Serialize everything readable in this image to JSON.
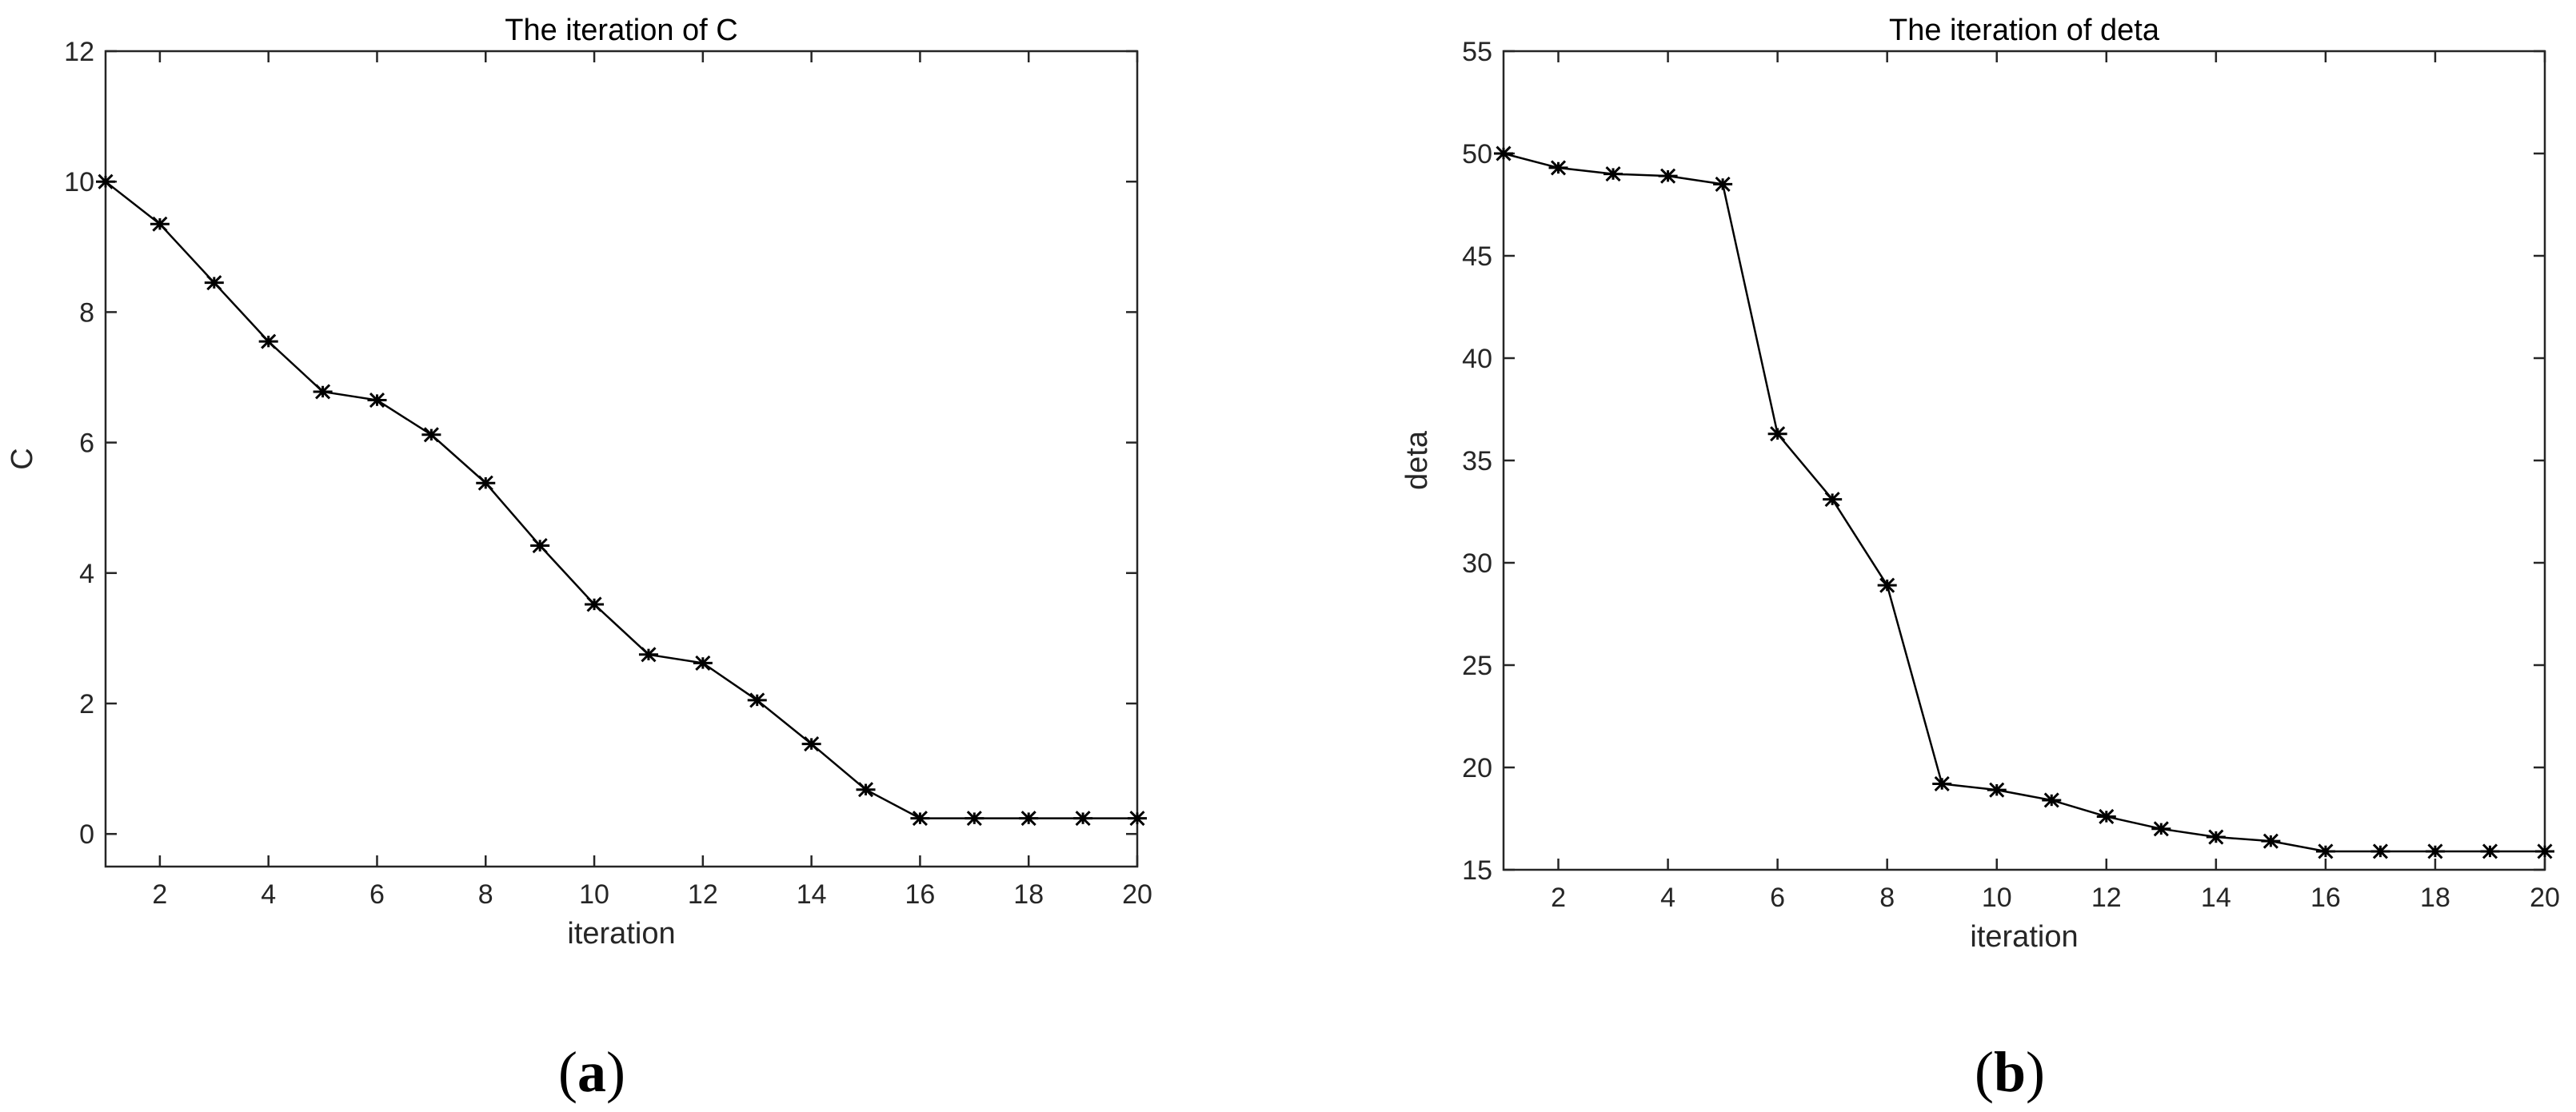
{
  "chart_data": [
    {
      "type": "line",
      "title": "The iteration of C",
      "xlabel": "iteration",
      "ylabel": "C",
      "xlim": [
        1,
        20
      ],
      "ylim": [
        -0.5,
        12
      ],
      "xticks": [
        2,
        4,
        6,
        8,
        10,
        12,
        14,
        16,
        18,
        20
      ],
      "yticks": [
        0,
        2,
        4,
        6,
        8,
        10,
        12
      ],
      "grid": false,
      "marker": "asterisk",
      "panel_label": {
        "open": "(",
        "letter": "a",
        "close": ")"
      },
      "x": [
        1,
        2,
        3,
        4,
        5,
        6,
        7,
        8,
        9,
        10,
        11,
        12,
        13,
        14,
        15,
        16,
        17,
        18,
        19,
        20
      ],
      "y": [
        10.0,
        9.35,
        8.45,
        7.55,
        6.78,
        6.65,
        6.12,
        5.38,
        4.42,
        3.52,
        2.75,
        2.62,
        2.05,
        1.38,
        0.68,
        0.24,
        0.24,
        0.24,
        0.24,
        0.24
      ]
    },
    {
      "type": "line",
      "title": "The iteration of deta",
      "xlabel": "iteration",
      "ylabel": "deta",
      "xlim": [
        1,
        20
      ],
      "ylim": [
        15,
        55
      ],
      "xticks": [
        2,
        4,
        6,
        8,
        10,
        12,
        14,
        16,
        18,
        20
      ],
      "yticks": [
        15,
        20,
        25,
        30,
        35,
        40,
        45,
        50,
        55
      ],
      "grid": false,
      "marker": "asterisk",
      "panel_label": {
        "open": "(",
        "letter": "b",
        "close": ")"
      },
      "x": [
        1,
        2,
        3,
        4,
        5,
        6,
        7,
        8,
        9,
        10,
        11,
        12,
        13,
        14,
        15,
        16,
        17,
        18,
        19,
        20
      ],
      "y": [
        50.0,
        49.3,
        49.0,
        48.9,
        48.5,
        36.3,
        33.1,
        28.9,
        19.2,
        18.9,
        18.4,
        17.6,
        17.0,
        16.6,
        16.4,
        15.9,
        15.9,
        15.9,
        15.9,
        15.9
      ]
    }
  ]
}
